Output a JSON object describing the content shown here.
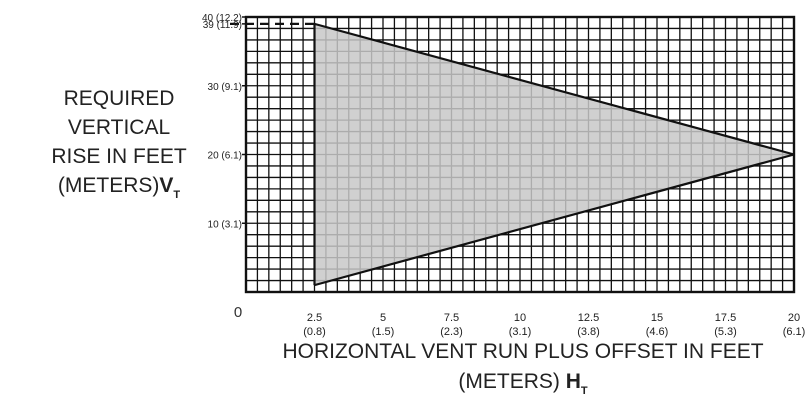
{
  "chart_data": {
    "type": "area",
    "xlim": [
      0,
      20
    ],
    "ylim": [
      0,
      40
    ],
    "grid": true,
    "x_ticks": [
      {
        "value": 2.5,
        "label": "2.5",
        "metric": "(0.8)"
      },
      {
        "value": 5,
        "label": "5",
        "metric": "(1.5)"
      },
      {
        "value": 7.5,
        "label": "7.5",
        "metric": "(2.3)"
      },
      {
        "value": 10,
        "label": "10",
        "metric": "(3.1)"
      },
      {
        "value": 12.5,
        "label": "12.5",
        "metric": "(3.8)"
      },
      {
        "value": 15,
        "label": "15",
        "metric": "(4.6)"
      },
      {
        "value": 17.5,
        "label": "17.5",
        "metric": "(5.3)"
      },
      {
        "value": 20,
        "label": "20",
        "metric": "(6.1)"
      }
    ],
    "y_ticks": [
      {
        "value": 10,
        "label": "10 (3.1)"
      },
      {
        "value": 20,
        "label": "20 (6.1)"
      },
      {
        "value": 30,
        "label": "30 (9.1)"
      },
      {
        "value": 39,
        "label": "39 (11.9)"
      },
      {
        "value": 40,
        "label": "40 (12.2)"
      }
    ],
    "origin_label": "0",
    "region": {
      "points": [
        [
          2.5,
          39
        ],
        [
          20,
          20
        ],
        [
          2.5,
          1
        ]
      ],
      "fill_color": "#c8c8c8",
      "stroke_color": "#111111"
    },
    "max_line": {
      "from": [
        0,
        39
      ],
      "to": [
        2.5,
        39
      ],
      "style": "dashed"
    },
    "ylabel": {
      "lines": [
        "REQUIRED",
        "VERTICAL",
        "RISE IN FEET",
        "(METERS)"
      ],
      "symbol": "V",
      "subscript": "T"
    },
    "xlabel": {
      "line1": "HORIZONTAL VENT RUN PLUS OFFSET IN FEET",
      "line2_text": "(METERS) ",
      "symbol": "H",
      "subscript": "T"
    }
  }
}
